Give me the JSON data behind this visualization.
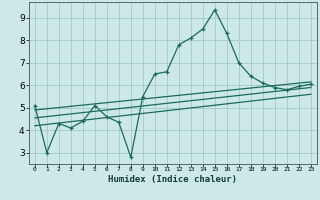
{
  "bg_color": "#cce8e8",
  "grid_color": "#aacccc",
  "line_color": "#1a6b5a",
  "xlabel": "Humidex (Indice chaleur)",
  "xlim": [
    -0.5,
    23.5
  ],
  "ylim": [
    2.5,
    9.7
  ],
  "yticks": [
    3,
    4,
    5,
    6,
    7,
    8,
    9
  ],
  "xticks": [
    0,
    1,
    2,
    3,
    4,
    5,
    6,
    7,
    8,
    9,
    10,
    11,
    12,
    13,
    14,
    15,
    16,
    17,
    18,
    19,
    20,
    21,
    22,
    23
  ],
  "xtick_labels": [
    "0",
    "1",
    "2",
    "3",
    "4",
    "5",
    "6",
    "7",
    "8",
    "9",
    "10",
    "11",
    "12",
    "13",
    "14",
    "15",
    "16",
    "17",
    "18",
    "19",
    "20",
    "21",
    "22",
    "23"
  ],
  "series1_x": [
    0,
    1,
    2,
    3,
    4,
    5,
    6,
    7,
    8,
    9,
    10,
    11,
    12,
    13,
    14,
    15,
    16,
    17,
    18,
    19,
    20,
    21,
    22,
    23
  ],
  "series1_y": [
    5.1,
    3.0,
    4.3,
    4.1,
    4.4,
    5.1,
    4.6,
    4.35,
    2.8,
    5.5,
    6.5,
    6.6,
    7.8,
    8.1,
    8.5,
    9.35,
    8.3,
    7.0,
    6.4,
    6.1,
    5.9,
    5.8,
    5.95,
    6.05
  ],
  "trend1_x": [
    0,
    23
  ],
  "trend1_y": [
    4.9,
    6.15
  ],
  "trend2_x": [
    0,
    23
  ],
  "trend2_y": [
    4.55,
    5.9
  ],
  "trend3_x": [
    0,
    23
  ],
  "trend3_y": [
    4.2,
    5.6
  ]
}
